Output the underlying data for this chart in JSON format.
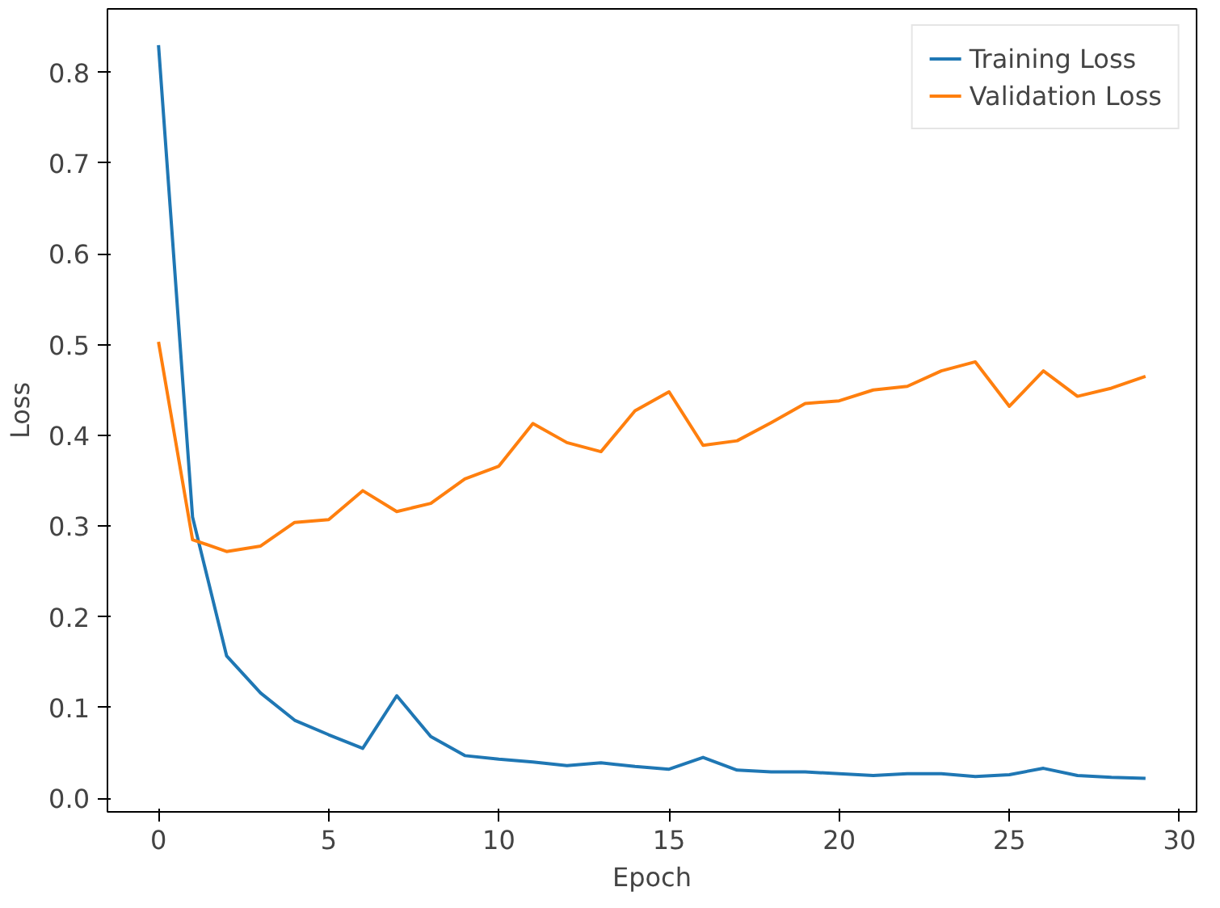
{
  "chart_data": {
    "type": "line",
    "xlabel": "Epoch",
    "ylabel": "Loss",
    "x": [
      0,
      1,
      2,
      3,
      4,
      5,
      6,
      7,
      8,
      9,
      10,
      11,
      12,
      13,
      14,
      15,
      16,
      17,
      18,
      19,
      20,
      21,
      22,
      23,
      24,
      25,
      26,
      27,
      28,
      29
    ],
    "series": [
      {
        "name": "Training Loss",
        "color": "#1f77b4",
        "values": [
          0.83,
          0.31,
          0.157,
          0.116,
          0.086,
          0.07,
          0.055,
          0.113,
          0.068,
          0.047,
          0.043,
          0.04,
          0.036,
          0.039,
          0.035,
          0.032,
          0.045,
          0.031,
          0.029,
          0.029,
          0.027,
          0.025,
          0.027,
          0.027,
          0.024,
          0.026,
          0.033,
          0.025,
          0.023,
          0.022
        ]
      },
      {
        "name": "Validation Loss",
        "color": "#ff7f0e",
        "values": [
          0.503,
          0.285,
          0.272,
          0.278,
          0.304,
          0.307,
          0.339,
          0.316,
          0.325,
          0.352,
          0.366,
          0.413,
          0.392,
          0.382,
          0.427,
          0.448,
          0.389,
          0.394,
          0.414,
          0.435,
          0.438,
          0.45,
          0.454,
          0.471,
          0.481,
          0.432,
          0.471,
          0.443,
          0.452,
          0.465
        ]
      }
    ],
    "xlim": [
      -1.5,
      30.5
    ],
    "xticks": [
      0,
      5,
      10,
      15,
      20,
      25,
      30
    ],
    "ylim": [
      -0.015,
      0.87
    ],
    "yticks": [
      {
        "value": 0,
        "label": "0.0"
      },
      0.1,
      0.2,
      0.3,
      0.4,
      0.5,
      0.6,
      0.7,
      0.8
    ],
    "grid": false,
    "legend": "top right",
    "marker": "none",
    "line_style": "solid"
  }
}
